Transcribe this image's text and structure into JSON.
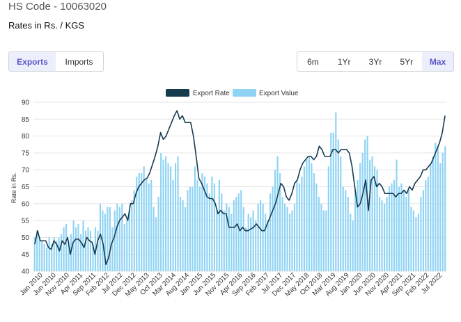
{
  "header": {
    "hs_code": "HS Code - 10063020",
    "subtitle": "Rates in Rs. / KGS"
  },
  "trade_tabs": [
    {
      "label": "Exports",
      "active": true
    },
    {
      "label": "Imports",
      "active": false
    }
  ],
  "range_tabs": [
    {
      "label": "6m",
      "active": false
    },
    {
      "label": "1Yr",
      "active": false
    },
    {
      "label": "3Yr",
      "active": false
    },
    {
      "label": "5Yr",
      "active": false
    },
    {
      "label": "Max",
      "active": true
    }
  ],
  "colors": {
    "rate_line": "#163b4f",
    "value_bar": "#8fd3f4",
    "accent": "#5b57c9"
  },
  "chart_data": {
    "type": "bar",
    "title": "",
    "xlabel": "",
    "ylabel": "Rate in Rs.",
    "ylim": [
      40,
      90
    ],
    "yticks": [
      40,
      45,
      50,
      55,
      60,
      65,
      70,
      75,
      80,
      85,
      90
    ],
    "grid": true,
    "legend_position": "top-center",
    "x_tick_labels": [
      "Jan 2010",
      "Jun 2010",
      "Nov 2010",
      "Apr 2011",
      "Sep 2011",
      "Feb 2012",
      "Jul 2012",
      "Dec 2012",
      "May 2013",
      "Oct 2013",
      "Mar 2014",
      "Aug 2014",
      "Jan 2015",
      "Jun 2015",
      "Nov 2015",
      "Apr 2016",
      "Sep 2016",
      "Feb 2017",
      "Jul 2017",
      "Dec 2017",
      "May 2018",
      "Oct 2018",
      "Mar 2019",
      "Aug 2019",
      "Jan 2020",
      "Jun 2020",
      "Nov 2020",
      "Apr 2021",
      "Sep 2021",
      "Feb 2022",
      "Jul 2022"
    ],
    "series": [
      {
        "name": "Export Rate",
        "type": "line",
        "values": [
          48,
          52,
          49,
          49,
          49,
          47,
          46.5,
          49,
          48,
          46,
          49,
          48,
          50,
          45,
          48.5,
          49.5,
          49.5,
          48.5,
          47,
          50,
          49,
          48.5,
          45,
          49,
          51,
          48,
          42,
          44,
          48,
          50,
          53,
          55,
          56,
          57,
          55,
          60,
          60,
          63,
          65,
          66,
          67,
          67.5,
          69,
          71.5,
          74,
          77,
          81,
          79,
          80,
          82,
          84,
          86,
          87.5,
          85,
          86,
          84,
          84,
          84,
          80,
          74,
          67.5,
          66,
          64,
          62,
          61.5,
          61.5,
          60,
          57,
          58,
          57,
          57,
          53,
          53,
          53,
          54,
          52,
          53,
          52,
          52,
          52.5,
          53,
          54,
          53,
          52,
          52,
          54,
          56,
          58,
          60,
          63,
          66,
          65,
          62,
          61,
          63,
          66,
          67,
          70,
          72,
          73,
          74,
          74,
          73,
          74,
          77,
          76,
          74,
          74,
          74,
          76,
          76,
          75,
          76,
          76,
          76,
          75,
          71,
          65,
          59,
          60,
          63,
          67,
          58,
          67,
          68,
          65,
          66,
          65,
          63,
          63,
          63,
          63,
          62,
          63,
          63,
          64,
          63,
          65,
          64,
          66,
          67,
          68,
          70,
          70,
          71,
          72,
          74,
          76,
          78,
          81,
          86
        ]
      },
      {
        "name": "Export Value",
        "type": "bar",
        "values": [
          50,
          52,
          50,
          49,
          48,
          47,
          50,
          48,
          50,
          49,
          50,
          51,
          53,
          54,
          49,
          51,
          55,
          53,
          54,
          51,
          55,
          52,
          53,
          52,
          48,
          53,
          52,
          60,
          58,
          57,
          59,
          59,
          53,
          58,
          60,
          59,
          60,
          54,
          55,
          58,
          61,
          64,
          68,
          69,
          69,
          71,
          67,
          66,
          67,
          59,
          56,
          62,
          75,
          73,
          74,
          72,
          71,
          67,
          72,
          74,
          62,
          61,
          59,
          64,
          65,
          65,
          71,
          67,
          65,
          69,
          68,
          66,
          63,
          68,
          66,
          58,
          67,
          63,
          58,
          60,
          59,
          57,
          61,
          62,
          63,
          64,
          59,
          53,
          57,
          56,
          58,
          55,
          60,
          61,
          60,
          57,
          55,
          63,
          65,
          70,
          74,
          69,
          62,
          60,
          59,
          57,
          58,
          60,
          67,
          66,
          68,
          71,
          73,
          74,
          72,
          69,
          66,
          62,
          60,
          58,
          58,
          71,
          81,
          81,
          87,
          79,
          74,
          65,
          64,
          62,
          57,
          55,
          64,
          67,
          72,
          75,
          79,
          80,
          73,
          74,
          71,
          70,
          62,
          61,
          60,
          62,
          65,
          66,
          67,
          73,
          65,
          66,
          64,
          62,
          64,
          59,
          58,
          56,
          57,
          62,
          64,
          67,
          68,
          72,
          74,
          78,
          77,
          72,
          75,
          77
        ]
      }
    ]
  }
}
